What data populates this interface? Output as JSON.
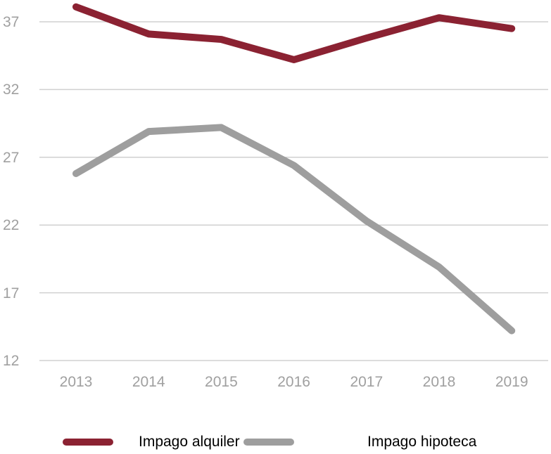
{
  "chart_data": {
    "type": "line",
    "title": "",
    "xlabel": "",
    "ylabel": "",
    "categories": [
      "2013",
      "2014",
      "2015",
      "2016",
      "2017",
      "2018",
      "2019"
    ],
    "series": [
      {
        "name": "Impago alquiler",
        "color": "#8b2232",
        "values": [
          38.1,
          36.1,
          35.7,
          34.2,
          35.8,
          37.3,
          36.5
        ]
      },
      {
        "name": "Impago hipoteca",
        "color": "#9e9e9e",
        "values": [
          25.8,
          28.9,
          29.2,
          26.4,
          22.3,
          18.9,
          14.2
        ]
      }
    ],
    "yticks": [
      "12",
      "17",
      "22",
      "27",
      "32",
      "37"
    ],
    "ylim": [
      12,
      38.5
    ],
    "grid": true,
    "legend_position": "bottom"
  },
  "legend": {
    "items": [
      {
        "label": "Impago alquiler",
        "color": "#8b2232"
      },
      {
        "label": "Impago hipoteca",
        "color": "#9e9e9e"
      }
    ]
  },
  "colors": {
    "grid": "#d0d0d0",
    "tick_text": "#a0a0a0"
  }
}
